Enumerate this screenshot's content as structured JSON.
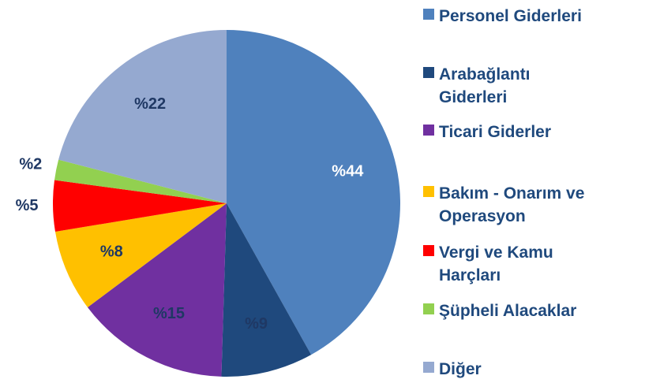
{
  "chart_data": {
    "type": "pie",
    "categories": [
      "Personel Giderleri",
      "Arabağlantı Giderleri",
      "Ticari Giderler",
      "Bakım - Onarım ve Operasyon",
      "Vergi ve Kamu Harçları",
      "Şüpheli Alacaklar",
      "Diğer"
    ],
    "values": [
      44,
      9,
      15,
      8,
      5,
      2,
      22
    ],
    "value_labels": [
      "%44",
      "%9",
      "%15",
      "%8",
      "%5",
      "%2",
      "%22"
    ],
    "colors": [
      "#4f81bd",
      "#1f497d",
      "#7030a0",
      "#ffc000",
      "#ff0000",
      "#92d050",
      "#95a9d0"
    ],
    "legend": "right"
  }
}
